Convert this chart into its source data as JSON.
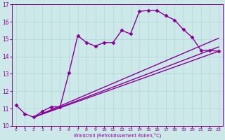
{
  "xlabel": "Windchill (Refroidissement éolien,°C)",
  "bg_color": "#cce8e8",
  "line_color": "#880099",
  "marker": "D",
  "markersize": 2.5,
  "linewidth": 1.0,
  "xlim": [
    -0.5,
    23.5
  ],
  "ylim": [
    10,
    17
  ],
  "yticks": [
    10,
    11,
    12,
    13,
    14,
    15,
    16,
    17
  ],
  "xticks": [
    0,
    1,
    2,
    3,
    4,
    5,
    6,
    7,
    8,
    9,
    10,
    11,
    12,
    13,
    14,
    15,
    16,
    17,
    18,
    19,
    20,
    21,
    22,
    23
  ],
  "series": [
    {
      "points": [
        [
          0,
          11.2
        ],
        [
          1,
          10.7
        ],
        [
          2,
          10.5
        ],
        [
          3,
          10.85
        ],
        [
          4,
          11.1
        ],
        [
          5,
          11.1
        ],
        [
          6,
          13.05
        ],
        [
          7,
          15.2
        ],
        [
          8,
          14.8
        ],
        [
          9,
          14.6
        ],
        [
          10,
          14.8
        ],
        [
          11,
          14.8
        ],
        [
          12,
          15.5
        ],
        [
          13,
          15.3
        ],
        [
          14,
          16.6
        ],
        [
          15,
          16.65
        ],
        [
          16,
          16.65
        ],
        [
          17,
          16.35
        ],
        [
          18,
          16.1
        ],
        [
          19,
          15.55
        ],
        [
          20,
          15.1
        ],
        [
          21,
          14.35
        ],
        [
          22,
          14.35
        ],
        [
          23,
          14.3
        ]
      ],
      "has_markers": true
    },
    {
      "points": [
        [
          2,
          10.5
        ],
        [
          23,
          14.3
        ]
      ],
      "has_markers": false
    },
    {
      "points": [
        [
          2,
          10.5
        ],
        [
          23,
          14.3
        ]
      ],
      "has_markers": false
    },
    {
      "points": [
        [
          2,
          10.5
        ],
        [
          23,
          14.3
        ]
      ],
      "has_markers": false
    }
  ]
}
